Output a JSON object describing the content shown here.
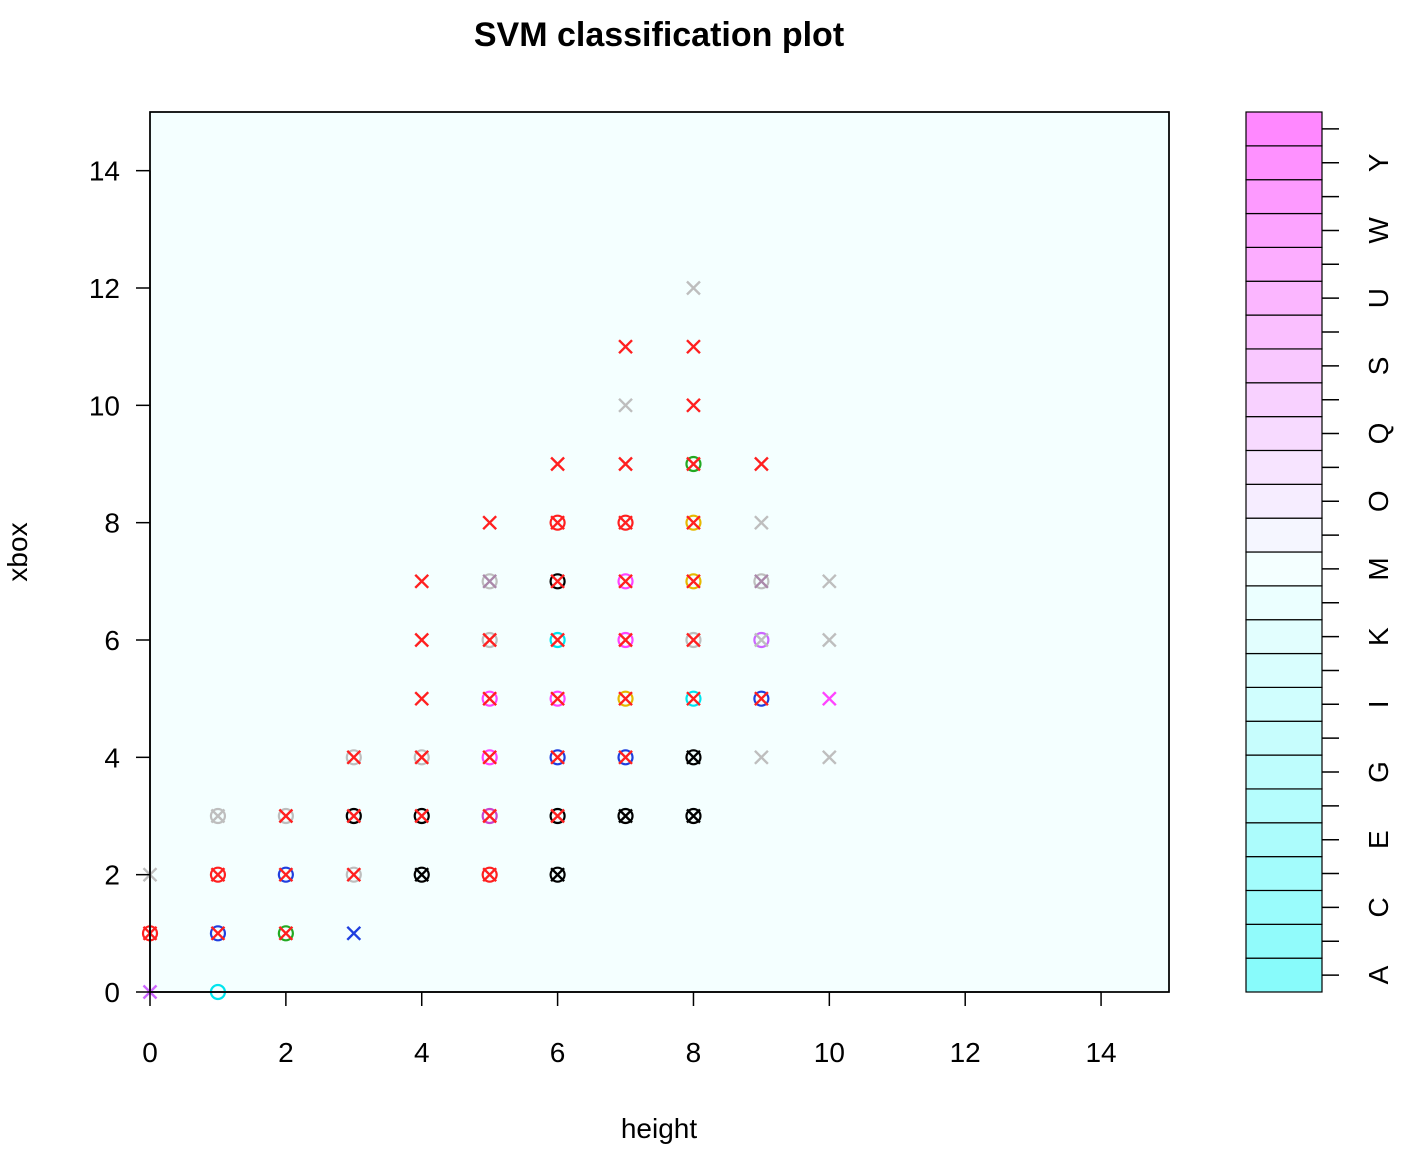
{
  "colors": {
    "panel_bg": "#f4ffff",
    "x_marker": "#ff0000",
    "o_marker": "#000000"
  },
  "chart_data": {
    "type": "scatter",
    "title": "SVM classification plot",
    "xlabel": "height",
    "ylabel": "xbox",
    "xlim": [
      0,
      15
    ],
    "ylim": [
      0,
      15
    ],
    "xticks": [
      0,
      2,
      4,
      6,
      8,
      10,
      12,
      14
    ],
    "yticks": [
      0,
      2,
      4,
      6,
      8,
      10,
      12,
      14
    ],
    "grid": false,
    "color_key": {
      "labels": [
        "A",
        "C",
        "E",
        "G",
        "I",
        "K",
        "M",
        "O",
        "Q",
        "S",
        "U",
        "W",
        "Y"
      ],
      "class_count": 26,
      "low_color": "#88fbfb",
      "mid_color": "#f4ffff",
      "high_color": "#ff88ff"
    },
    "points": [
      {
        "x": 0,
        "y": 0,
        "m": "x",
        "c": "#cc66ff"
      },
      {
        "x": 0,
        "y": 1,
        "m": "o",
        "c": "#ff2020"
      },
      {
        "x": 0,
        "y": 1,
        "m": "x",
        "c": "#ff2020"
      },
      {
        "x": 0,
        "y": 2,
        "m": "x",
        "c": "#bebebe"
      },
      {
        "x": 1,
        "y": 0,
        "m": "o",
        "c": "#00e5ee"
      },
      {
        "x": 1,
        "y": 1,
        "m": "o",
        "c": "#1f3fdf"
      },
      {
        "x": 1,
        "y": 1,
        "m": "x",
        "c": "#ff2020"
      },
      {
        "x": 1,
        "y": 2,
        "m": "o",
        "c": "#ff2020"
      },
      {
        "x": 1,
        "y": 2,
        "m": "x",
        "c": "#ff2020"
      },
      {
        "x": 1,
        "y": 3,
        "m": "o",
        "c": "#bebebe"
      },
      {
        "x": 1,
        "y": 3,
        "m": "x",
        "c": "#bebebe"
      },
      {
        "x": 2,
        "y": 1,
        "m": "o",
        "c": "#22aa22"
      },
      {
        "x": 2,
        "y": 1,
        "m": "x",
        "c": "#ff2020"
      },
      {
        "x": 2,
        "y": 2,
        "m": "o",
        "c": "#1f3fdf"
      },
      {
        "x": 2,
        "y": 2,
        "m": "x",
        "c": "#ff2020"
      },
      {
        "x": 2,
        "y": 3,
        "m": "o",
        "c": "#bebebe"
      },
      {
        "x": 2,
        "y": 3,
        "m": "x",
        "c": "#ff2020"
      },
      {
        "x": 3,
        "y": 1,
        "m": "x",
        "c": "#1f3fdf"
      },
      {
        "x": 3,
        "y": 2,
        "m": "o",
        "c": "#bebebe"
      },
      {
        "x": 3,
        "y": 2,
        "m": "x",
        "c": "#ff2020"
      },
      {
        "x": 3,
        "y": 3,
        "m": "o",
        "c": "#000000"
      },
      {
        "x": 3,
        "y": 3,
        "m": "x",
        "c": "#ff2020"
      },
      {
        "x": 3,
        "y": 4,
        "m": "o",
        "c": "#bebebe"
      },
      {
        "x": 3,
        "y": 4,
        "m": "x",
        "c": "#ff2020"
      },
      {
        "x": 4,
        "y": 2,
        "m": "o",
        "c": "#000000"
      },
      {
        "x": 4,
        "y": 2,
        "m": "x",
        "c": "#000000"
      },
      {
        "x": 4,
        "y": 3,
        "m": "o",
        "c": "#000000"
      },
      {
        "x": 4,
        "y": 3,
        "m": "x",
        "c": "#ff2020"
      },
      {
        "x": 4,
        "y": 4,
        "m": "o",
        "c": "#bebebe"
      },
      {
        "x": 4,
        "y": 4,
        "m": "x",
        "c": "#ff2020"
      },
      {
        "x": 4,
        "y": 5,
        "m": "x",
        "c": "#ff2020"
      },
      {
        "x": 4,
        "y": 6,
        "m": "x",
        "c": "#ff2020"
      },
      {
        "x": 4,
        "y": 7,
        "m": "x",
        "c": "#ff2020"
      },
      {
        "x": 5,
        "y": 2,
        "m": "o",
        "c": "#ff2020"
      },
      {
        "x": 5,
        "y": 2,
        "m": "x",
        "c": "#ff2020"
      },
      {
        "x": 5,
        "y": 3,
        "m": "o",
        "c": "#cc44cc"
      },
      {
        "x": 5,
        "y": 3,
        "m": "x",
        "c": "#ff2020"
      },
      {
        "x": 5,
        "y": 4,
        "m": "o",
        "c": "#ff44ff"
      },
      {
        "x": 5,
        "y": 4,
        "m": "x",
        "c": "#ff2020"
      },
      {
        "x": 5,
        "y": 5,
        "m": "o",
        "c": "#ff44ff"
      },
      {
        "x": 5,
        "y": 5,
        "m": "x",
        "c": "#ff2020"
      },
      {
        "x": 5,
        "y": 6,
        "m": "o",
        "c": "#bebebe"
      },
      {
        "x": 5,
        "y": 6,
        "m": "x",
        "c": "#ff2020"
      },
      {
        "x": 5,
        "y": 7,
        "m": "o",
        "c": "#bebebe"
      },
      {
        "x": 5,
        "y": 7,
        "m": "x",
        "c": "#aa88aa"
      },
      {
        "x": 5,
        "y": 8,
        "m": "x",
        "c": "#ff2020"
      },
      {
        "x": 6,
        "y": 2,
        "m": "o",
        "c": "#000000"
      },
      {
        "x": 6,
        "y": 2,
        "m": "x",
        "c": "#000000"
      },
      {
        "x": 6,
        "y": 3,
        "m": "o",
        "c": "#000000"
      },
      {
        "x": 6,
        "y": 3,
        "m": "x",
        "c": "#ff2020"
      },
      {
        "x": 6,
        "y": 4,
        "m": "o",
        "c": "#1f3fdf"
      },
      {
        "x": 6,
        "y": 4,
        "m": "x",
        "c": "#ff2020"
      },
      {
        "x": 6,
        "y": 5,
        "m": "o",
        "c": "#ff44ff"
      },
      {
        "x": 6,
        "y": 5,
        "m": "x",
        "c": "#ff2020"
      },
      {
        "x": 6,
        "y": 6,
        "m": "o",
        "c": "#00e5ee"
      },
      {
        "x": 6,
        "y": 6,
        "m": "x",
        "c": "#ff2020"
      },
      {
        "x": 6,
        "y": 7,
        "m": "o",
        "c": "#000000"
      },
      {
        "x": 6,
        "y": 7,
        "m": "x",
        "c": "#ff2020"
      },
      {
        "x": 6,
        "y": 8,
        "m": "o",
        "c": "#ff2020"
      },
      {
        "x": 6,
        "y": 8,
        "m": "x",
        "c": "#ff2020"
      },
      {
        "x": 6,
        "y": 9,
        "m": "x",
        "c": "#ff2020"
      },
      {
        "x": 7,
        "y": 3,
        "m": "o",
        "c": "#000000"
      },
      {
        "x": 7,
        "y": 3,
        "m": "x",
        "c": "#000000"
      },
      {
        "x": 7,
        "y": 4,
        "m": "o",
        "c": "#1f3fdf"
      },
      {
        "x": 7,
        "y": 4,
        "m": "x",
        "c": "#ff2020"
      },
      {
        "x": 7,
        "y": 5,
        "m": "o",
        "c": "#e6b800"
      },
      {
        "x": 7,
        "y": 5,
        "m": "x",
        "c": "#ff2020"
      },
      {
        "x": 7,
        "y": 6,
        "m": "o",
        "c": "#ff44ff"
      },
      {
        "x": 7,
        "y": 6,
        "m": "x",
        "c": "#ff2020"
      },
      {
        "x": 7,
        "y": 7,
        "m": "o",
        "c": "#ff44ff"
      },
      {
        "x": 7,
        "y": 7,
        "m": "x",
        "c": "#ff2020"
      },
      {
        "x": 7,
        "y": 8,
        "m": "o",
        "c": "#ff2020"
      },
      {
        "x": 7,
        "y": 8,
        "m": "x",
        "c": "#ff2020"
      },
      {
        "x": 7,
        "y": 9,
        "m": "x",
        "c": "#ff2020"
      },
      {
        "x": 7,
        "y": 10,
        "m": "x",
        "c": "#bebebe"
      },
      {
        "x": 7,
        "y": 11,
        "m": "x",
        "c": "#ff2020"
      },
      {
        "x": 8,
        "y": 3,
        "m": "o",
        "c": "#000000"
      },
      {
        "x": 8,
        "y": 3,
        "m": "x",
        "c": "#000000"
      },
      {
        "x": 8,
        "y": 4,
        "m": "o",
        "c": "#000000"
      },
      {
        "x": 8,
        "y": 4,
        "m": "x",
        "c": "#000000"
      },
      {
        "x": 8,
        "y": 5,
        "m": "o",
        "c": "#00e5ee"
      },
      {
        "x": 8,
        "y": 5,
        "m": "x",
        "c": "#ff2020"
      },
      {
        "x": 8,
        "y": 6,
        "m": "o",
        "c": "#bebebe"
      },
      {
        "x": 8,
        "y": 6,
        "m": "x",
        "c": "#ff2020"
      },
      {
        "x": 8,
        "y": 7,
        "m": "o",
        "c": "#e6b800"
      },
      {
        "x": 8,
        "y": 7,
        "m": "x",
        "c": "#ff2020"
      },
      {
        "x": 8,
        "y": 8,
        "m": "o",
        "c": "#e6b800"
      },
      {
        "x": 8,
        "y": 8,
        "m": "x",
        "c": "#ff2020"
      },
      {
        "x": 8,
        "y": 9,
        "m": "o",
        "c": "#22aa22"
      },
      {
        "x": 8,
        "y": 9,
        "m": "x",
        "c": "#ff2020"
      },
      {
        "x": 8,
        "y": 10,
        "m": "x",
        "c": "#ff2020"
      },
      {
        "x": 8,
        "y": 11,
        "m": "x",
        "c": "#ff2020"
      },
      {
        "x": 8,
        "y": 12,
        "m": "x",
        "c": "#bebebe"
      },
      {
        "x": 9,
        "y": 4,
        "m": "x",
        "c": "#bebebe"
      },
      {
        "x": 9,
        "y": 5,
        "m": "o",
        "c": "#1f3fdf"
      },
      {
        "x": 9,
        "y": 5,
        "m": "x",
        "c": "#ff2020"
      },
      {
        "x": 9,
        "y": 6,
        "m": "o",
        "c": "#cc66ff"
      },
      {
        "x": 9,
        "y": 6,
        "m": "x",
        "c": "#bebebe"
      },
      {
        "x": 9,
        "y": 7,
        "m": "o",
        "c": "#bebebe"
      },
      {
        "x": 9,
        "y": 7,
        "m": "x",
        "c": "#aa88aa"
      },
      {
        "x": 9,
        "y": 8,
        "m": "x",
        "c": "#bebebe"
      },
      {
        "x": 9,
        "y": 9,
        "m": "x",
        "c": "#ff2020"
      },
      {
        "x": 10,
        "y": 4,
        "m": "x",
        "c": "#bebebe"
      },
      {
        "x": 10,
        "y": 5,
        "m": "x",
        "c": "#ff44ff"
      },
      {
        "x": 10,
        "y": 6,
        "m": "x",
        "c": "#bebebe"
      },
      {
        "x": 10,
        "y": 7,
        "m": "x",
        "c": "#bebebe"
      }
    ]
  }
}
